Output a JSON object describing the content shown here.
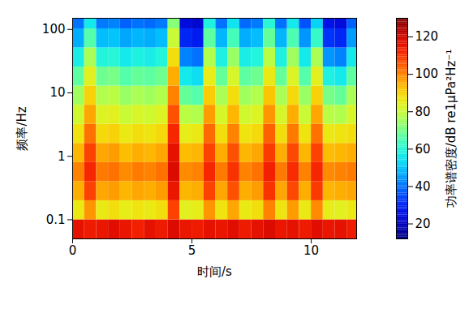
{
  "chart_data": {
    "type": "heatmap",
    "x_label": "时间/s",
    "y_label": "频率/Hz",
    "xlim": [
      0,
      11.9
    ],
    "xticks": [
      0,
      5,
      10
    ],
    "ylim": [
      0.05,
      150
    ],
    "yticks": [
      0.1,
      1,
      10,
      100
    ],
    "log": "y",
    "x_edges": [
      0,
      0.5,
      1,
      1.5,
      2,
      2.5,
      3,
      3.5,
      4,
      4.5,
      5,
      5.5,
      6,
      6.5,
      7,
      7.5,
      8,
      8.5,
      9,
      9.5,
      10,
      10.5,
      11,
      11.5,
      11.9
    ],
    "y_edges": [
      0.05,
      0.1,
      0.2,
      0.4,
      0.8,
      1.6,
      3.2,
      6.4,
      12.8,
      25.6,
      51.2,
      102.4,
      150
    ],
    "z": [
      [
        116,
        114,
        115,
        117,
        115,
        113,
        116,
        114,
        118,
        115,
        114,
        116,
        115,
        117,
        114,
        116,
        118,
        115,
        116,
        114,
        117,
        115,
        116,
        114
      ],
      [
        86,
        98,
        86,
        88,
        85,
        87,
        86,
        88,
        108,
        84,
        85,
        98,
        87,
        96,
        86,
        88,
        100,
        87,
        97,
        86,
        99,
        85,
        84,
        86
      ],
      [
        95,
        108,
        96,
        97,
        94,
        96,
        95,
        97,
        115,
        94,
        95,
        108,
        96,
        106,
        95,
        97,
        110,
        96,
        107,
        95,
        109,
        94,
        95,
        96
      ],
      [
        100,
        112,
        101,
        102,
        99,
        101,
        100,
        102,
        118,
        99,
        100,
        112,
        101,
        110,
        100,
        102,
        113,
        101,
        111,
        100,
        112,
        99,
        100,
        101
      ],
      [
        94,
        108,
        96,
        97,
        93,
        95,
        94,
        96,
        116,
        93,
        94,
        108,
        95,
        106,
        94,
        96,
        109,
        95,
        107,
        94,
        108,
        93,
        94,
        95
      ],
      [
        87,
        102,
        89,
        90,
        86,
        88,
        87,
        89,
        112,
        85,
        86,
        103,
        88,
        100,
        87,
        89,
        104,
        88,
        101,
        87,
        102,
        86,
        87,
        88
      ],
      [
        81,
        96,
        83,
        84,
        80,
        82,
        81,
        83,
        106,
        78,
        77,
        97,
        82,
        94,
        81,
        83,
        98,
        82,
        95,
        80,
        96,
        78,
        77,
        82
      ],
      [
        75,
        90,
        77,
        78,
        74,
        76,
        75,
        77,
        100,
        68,
        66,
        91,
        76,
        88,
        75,
        77,
        92,
        76,
        89,
        74,
        90,
        70,
        68,
        76
      ],
      [
        67,
        84,
        69,
        70,
        66,
        68,
        67,
        69,
        95,
        56,
        54,
        85,
        68,
        82,
        67,
        69,
        86,
        68,
        83,
        66,
        84,
        58,
        56,
        67
      ],
      [
        57,
        76,
        59,
        60,
        56,
        58,
        57,
        59,
        88,
        42,
        40,
        77,
        58,
        74,
        57,
        59,
        78,
        58,
        75,
        56,
        76,
        44,
        42,
        56
      ],
      [
        47,
        66,
        49,
        50,
        46,
        48,
        47,
        49,
        80,
        30,
        28,
        67,
        48,
        64,
        47,
        49,
        68,
        48,
        65,
        44,
        62,
        32,
        30,
        45
      ],
      [
        40,
        56,
        41,
        42,
        38,
        40,
        39,
        41,
        72,
        24,
        22,
        58,
        40,
        55,
        39,
        41,
        60,
        40,
        56,
        36,
        52,
        26,
        24,
        38
      ]
    ],
    "colorbar": {
      "range": [
        12,
        130
      ],
      "ticks": [
        20,
        40,
        60,
        80,
        100,
        120
      ],
      "label": "功率谱密度/dB re1μPa²Hz⁻¹"
    }
  }
}
